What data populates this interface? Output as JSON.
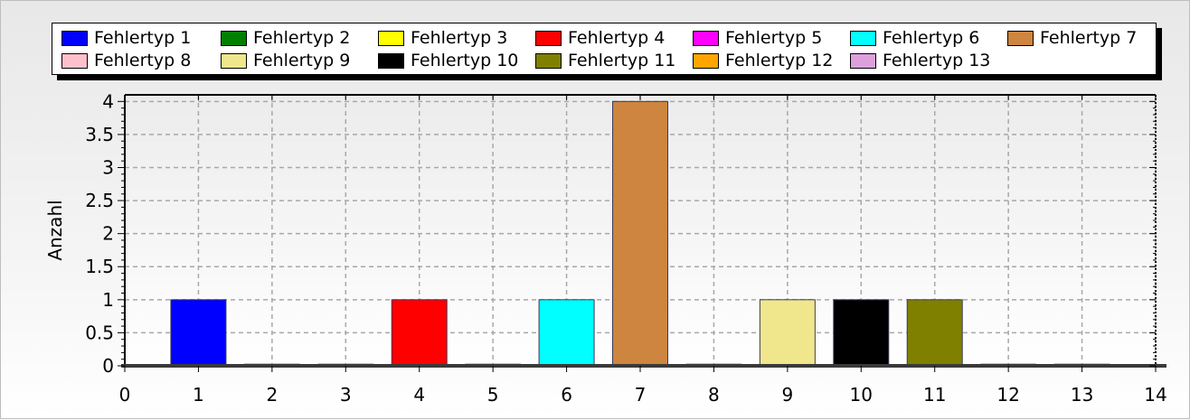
{
  "chart_data": {
    "type": "bar",
    "title": "",
    "xlabel": "",
    "ylabel": "Anzahl",
    "xlim": [
      0,
      14
    ],
    "ylim": [
      0,
      4.1
    ],
    "x_ticks": [
      "0",
      "1",
      "2",
      "3",
      "4",
      "5",
      "6",
      "7",
      "8",
      "9",
      "10",
      "11",
      "12",
      "13",
      "14"
    ],
    "y_ticks": [
      "0",
      "0.5",
      "1",
      "1.5",
      "2",
      "2.5",
      "3",
      "3.5",
      "4"
    ],
    "grid": true,
    "legend_position": "top",
    "series": [
      {
        "name": "Fehlertyp 1",
        "x": 1,
        "value": 1,
        "color": "#0000ff"
      },
      {
        "name": "Fehlertyp 2",
        "x": 2,
        "value": 0,
        "color": "#008000"
      },
      {
        "name": "Fehlertyp 3",
        "x": 3,
        "value": 0,
        "color": "#ffff00"
      },
      {
        "name": "Fehlertyp 4",
        "x": 4,
        "value": 1,
        "color": "#ff0000"
      },
      {
        "name": "Fehlertyp 5",
        "x": 5,
        "value": 0,
        "color": "#ff00ff"
      },
      {
        "name": "Fehlertyp 6",
        "x": 6,
        "value": 1,
        "color": "#00ffff"
      },
      {
        "name": "Fehlertyp 7",
        "x": 7,
        "value": 4,
        "color": "#cd853f"
      },
      {
        "name": "Fehlertyp 8",
        "x": 8,
        "value": 0,
        "color": "#ffc0cb"
      },
      {
        "name": "Fehlertyp 9",
        "x": 9,
        "value": 1,
        "color": "#f0e68c"
      },
      {
        "name": "Fehlertyp 10",
        "x": 10,
        "value": 1,
        "color": "#000000"
      },
      {
        "name": "Fehlertyp 11",
        "x": 11,
        "value": 1,
        "color": "#808000"
      },
      {
        "name": "Fehlertyp 12",
        "x": 12,
        "value": 0,
        "color": "#ffa500"
      },
      {
        "name": "Fehlertyp 13",
        "x": 13,
        "value": 0,
        "color": "#dda0dd"
      }
    ]
  }
}
